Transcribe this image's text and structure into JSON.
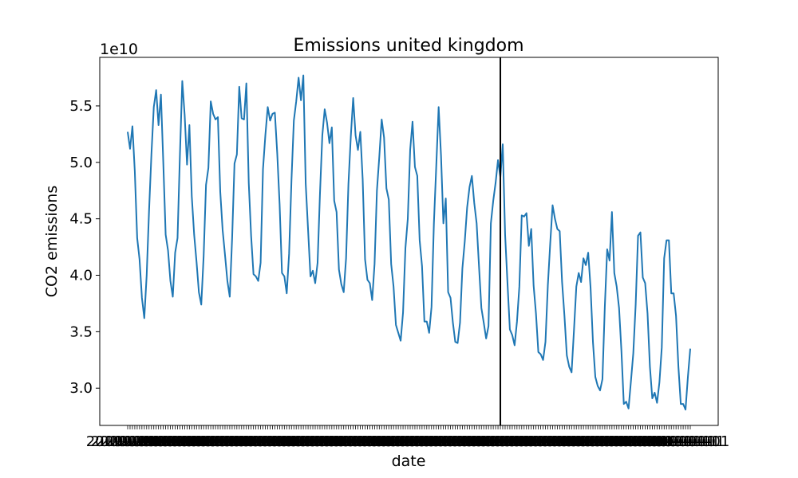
{
  "chart_data": {
    "type": "line",
    "title": "Emissions united kingdom",
    "xlabel": "date",
    "ylabel": "CO2 emissions",
    "y_offset_label": "1e10",
    "y_scale": 10000000000.0,
    "ylim": [
      2.67,
      5.93
    ],
    "yticks": [
      3.0,
      3.5,
      4.0,
      4.5,
      5.0,
      5.5
    ],
    "ytick_labels": [
      "3.0",
      "3.5",
      "4.0",
      "4.5",
      "5.0",
      "5.5"
    ],
    "grid": false,
    "color": "#1f77b4",
    "vline_color": "#000000",
    "vline_index": 157,
    "x_tick_labels_overlapping": "2019-01-01",
    "series": [
      {
        "values": [
          5.27,
          5.12,
          5.32,
          4.92,
          4.33,
          4.14,
          3.8,
          3.62,
          4.0,
          4.57,
          5.07,
          5.49,
          5.64,
          5.33,
          5.6,
          5.0,
          4.36,
          4.22,
          3.95,
          3.81,
          4.2,
          4.33,
          5.06,
          5.72,
          5.42,
          4.98,
          5.33,
          4.7,
          4.36,
          4.12,
          3.85,
          3.74,
          4.17,
          4.8,
          4.95,
          5.54,
          5.43,
          5.38,
          5.4,
          4.74,
          4.4,
          4.18,
          3.95,
          3.81,
          4.33,
          4.99,
          5.07,
          5.67,
          5.39,
          5.38,
          5.7,
          4.82,
          4.35,
          4.01,
          3.99,
          3.95,
          4.11,
          4.94,
          5.24,
          5.49,
          5.37,
          5.43,
          5.44,
          5.08,
          4.63,
          4.02,
          3.99,
          3.84,
          4.19,
          4.84,
          5.37,
          5.54,
          5.75,
          5.55,
          5.77,
          4.81,
          4.4,
          3.99,
          4.04,
          3.93,
          4.11,
          4.72,
          5.24,
          5.47,
          5.35,
          5.17,
          5.31,
          4.66,
          4.56,
          4.05,
          3.92,
          3.85,
          4.15,
          4.81,
          5.23,
          5.57,
          5.24,
          5.11,
          5.27,
          4.85,
          4.14,
          3.96,
          3.93,
          3.78,
          4.1,
          4.75,
          5.05,
          5.38,
          5.22,
          4.77,
          4.67,
          4.1,
          3.9,
          3.56,
          3.49,
          3.42,
          3.67,
          4.24,
          4.5,
          5.11,
          5.36,
          4.96,
          4.88,
          4.31,
          4.08,
          3.59,
          3.59,
          3.49,
          3.72,
          4.46,
          4.97,
          5.49,
          5.06,
          4.46,
          4.68,
          3.85,
          3.8,
          3.58,
          3.41,
          3.4,
          3.58,
          4.06,
          4.3,
          4.6,
          4.78,
          4.88,
          4.64,
          4.46,
          4.08,
          3.71,
          3.58,
          3.44,
          3.55,
          4.46,
          4.66,
          4.82,
          5.02,
          4.87,
          5.16,
          4.36,
          3.93,
          3.52,
          3.47,
          3.38,
          3.59,
          3.9,
          4.53,
          4.52,
          4.55,
          4.26,
          4.41,
          3.91,
          3.66,
          3.32,
          3.3,
          3.25,
          3.41,
          3.91,
          4.28,
          4.62,
          4.5,
          4.41,
          4.39,
          3.94,
          3.64,
          3.29,
          3.19,
          3.14,
          3.51,
          3.9,
          4.02,
          3.94,
          4.15,
          4.09,
          4.2,
          3.89,
          3.41,
          3.1,
          3.02,
          2.98,
          3.08,
          3.72,
          4.23,
          4.13,
          4.56,
          4.02,
          3.9,
          3.71,
          3.33,
          2.86,
          2.88,
          2.82,
          3.06,
          3.31,
          3.74,
          4.35,
          4.38,
          3.98,
          3.93,
          3.66,
          3.19,
          2.91,
          2.96,
          2.87,
          3.05,
          3.36,
          4.15,
          4.31,
          4.31,
          3.84,
          3.84,
          3.64,
          3.19,
          2.86,
          2.86,
          2.81,
          3.1,
          3.35
        ]
      }
    ]
  }
}
